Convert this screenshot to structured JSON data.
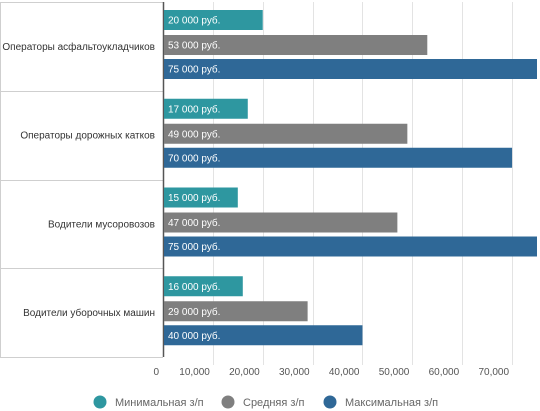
{
  "chart_data": {
    "type": "bar",
    "orientation": "horizontal",
    "categories": [
      "Операторы асфальтоукладчиков",
      "Операторы дорожных катков",
      "Водители мусоровозов",
      "Водители уборочных машин"
    ],
    "series": [
      {
        "name": "Минимальная з/п",
        "color": "#2e97a0",
        "values": [
          20000,
          17000,
          15000,
          16000
        ],
        "labels": [
          "20 000 руб.",
          "17 000 руб.",
          "15 000 руб.",
          "16 000 руб."
        ]
      },
      {
        "name": "Средняя з/п",
        "color": "#7f7f7f",
        "values": [
          53000,
          49000,
          47000,
          29000
        ],
        "labels": [
          "53 000 руб.",
          "49 000 руб.",
          "47 000 руб.",
          "29 000 руб."
        ]
      },
      {
        "name": "Максимальная з/п",
        "color": "#2f6897",
        "values": [
          75000,
          70000,
          75000,
          40000
        ],
        "labels": [
          "75 000 руб.",
          "70 000 руб.",
          "75 000 руб.",
          "40 000 руб."
        ]
      }
    ],
    "xticks": [
      0,
      10000,
      20000,
      30000,
      40000,
      50000,
      60000,
      70000
    ],
    "xtick_labels": [
      "0",
      "10,000",
      "20,000",
      "30,000",
      "40,000",
      "50,000",
      "60,000",
      "70,000"
    ],
    "xlim": [
      0,
      75000
    ],
    "grid": true,
    "legend_position": "bottom"
  }
}
